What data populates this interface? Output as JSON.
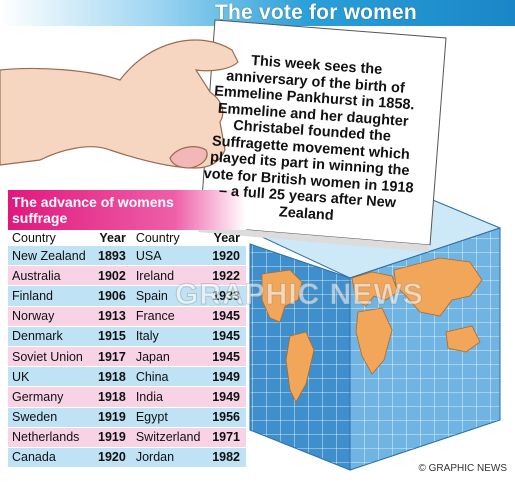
{
  "title": "The vote for women",
  "note_text": "This week sees the anniversary of the birth of Emmeline Pankhurst in 1858. Emmeline and her daughter Christabel founded the Suffragette movement which played its part in winning the vote for British women in 1918 – a full 25 years after New Zealand",
  "table": {
    "heading": "The advance of womens suffrage",
    "columns": [
      "Country",
      "Year",
      "Country",
      "Year"
    ],
    "rows": [
      [
        "New Zealand",
        "1893",
        "USA",
        "1920"
      ],
      [
        "Australia",
        "1902",
        "Ireland",
        "1922"
      ],
      [
        "Finland",
        "1906",
        "Spain",
        "1933"
      ],
      [
        "Norway",
        "1913",
        "France",
        "1945"
      ],
      [
        "Denmark",
        "1915",
        "Italy",
        "1945"
      ],
      [
        "Soviet Union",
        "1917",
        "Japan",
        "1945"
      ],
      [
        "UK",
        "1918",
        "China",
        "1949"
      ],
      [
        "Germany",
        "1918",
        "India",
        "1949"
      ],
      [
        "Sweden",
        "1919",
        "Egypt",
        "1956"
      ],
      [
        "Netherlands",
        "1919",
        "Switzerland",
        "1971"
      ],
      [
        "Canada",
        "1920",
        "Jordan",
        "1982"
      ]
    ]
  },
  "watermark": "GRAPHIC NEWS",
  "credit": "© GRAPHIC NEWS",
  "colors": {
    "title_blue": "#1a86c7",
    "heading_magenta": "#e0177d",
    "row_blue": "#bfe2f4",
    "row_pink": "#f8d3e6",
    "box_blue": "#5fa8da",
    "land_orange": "#f2a65a"
  },
  "icons": [
    "hand-icon",
    "ballot-box-icon",
    "world-map-icon"
  ]
}
